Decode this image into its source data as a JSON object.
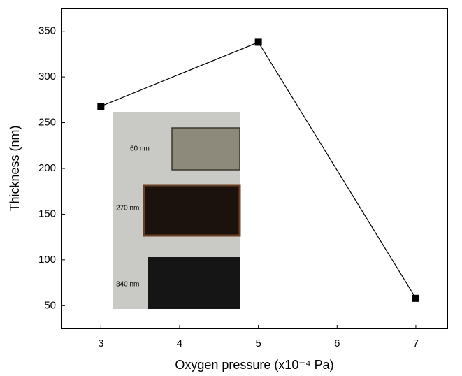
{
  "chart_data": {
    "type": "line",
    "xlabel": "Oxygen pressure (x10⁻⁴ Pa)",
    "ylabel": "Thickness (nm)",
    "x": [
      3,
      5,
      7
    ],
    "series": [
      {
        "color": "#000000",
        "values": [
          268,
          338,
          58
        ]
      }
    ],
    "xlim": [
      2.5,
      7.4
    ],
    "xticks": [
      3,
      4,
      5,
      6,
      7
    ],
    "ylim": [
      25,
      375
    ],
    "yticks": [
      50,
      100,
      150,
      200,
      250,
      300,
      350
    ],
    "annotations": [
      "60 nm",
      "270 nm",
      "340 nm"
    ]
  }
}
